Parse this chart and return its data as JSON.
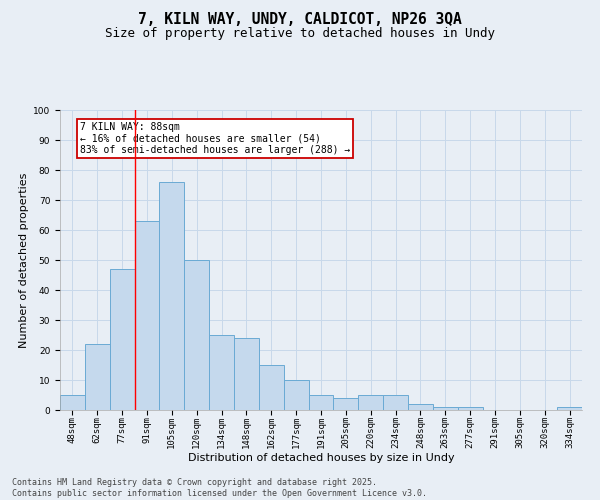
{
  "title_line1": "7, KILN WAY, UNDY, CALDICOT, NP26 3QA",
  "title_line2": "Size of property relative to detached houses in Undy",
  "xlabel": "Distribution of detached houses by size in Undy",
  "ylabel": "Number of detached properties",
  "categories": [
    "48sqm",
    "62sqm",
    "77sqm",
    "91sqm",
    "105sqm",
    "120sqm",
    "134sqm",
    "148sqm",
    "162sqm",
    "177sqm",
    "191sqm",
    "205sqm",
    "220sqm",
    "234sqm",
    "248sqm",
    "263sqm",
    "277sqm",
    "291sqm",
    "305sqm",
    "320sqm",
    "334sqm"
  ],
  "values": [
    5,
    22,
    47,
    63,
    76,
    50,
    25,
    24,
    15,
    10,
    5,
    4,
    5,
    5,
    2,
    1,
    1,
    0,
    0,
    0,
    1
  ],
  "bar_color": "#c5d9ed",
  "bar_edge_color": "#6aaad4",
  "grid_color": "#c8d8ea",
  "background_color": "#e8eef5",
  "annotation_box_text": "7 KILN WAY: 88sqm\n← 16% of detached houses are smaller (54)\n83% of semi-detached houses are larger (288) →",
  "annotation_box_color": "#ffffff",
  "annotation_box_edge_color": "#cc0000",
  "redline_x": 2.5,
  "ylim": [
    0,
    100
  ],
  "yticks": [
    0,
    10,
    20,
    30,
    40,
    50,
    60,
    70,
    80,
    90,
    100
  ],
  "footnote": "Contains HM Land Registry data © Crown copyright and database right 2025.\nContains public sector information licensed under the Open Government Licence v3.0.",
  "title_fontsize": 10.5,
  "subtitle_fontsize": 9,
  "axis_label_fontsize": 8,
  "tick_fontsize": 6.5,
  "annot_fontsize": 7,
  "footnote_fontsize": 6
}
